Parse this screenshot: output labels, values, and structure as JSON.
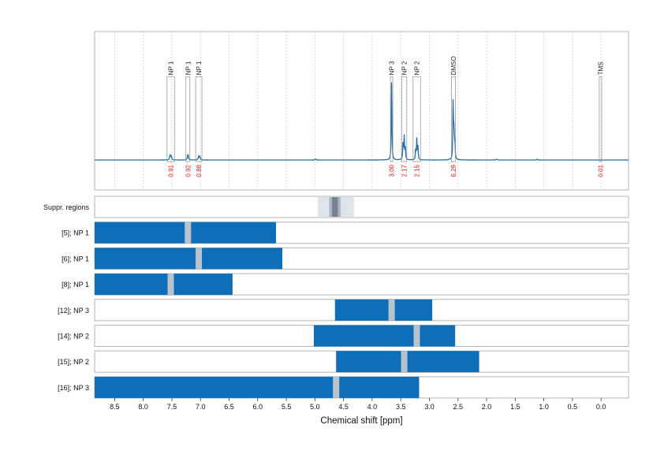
{
  "chart_data": {
    "type": "spectrum",
    "x_label": "Chemical shift [ppm]",
    "x_ticks": [
      "8.5",
      "8.0",
      "7.5",
      "7.0",
      "6.5",
      "6.0",
      "5.5",
      "5.0",
      "4.5",
      "4.0",
      "3.5",
      "3.0",
      "2.5",
      "2.0",
      "1.5",
      "1.0",
      "0.5",
      "0.0"
    ],
    "x_tick_values": [
      8.5,
      8.0,
      7.5,
      7.0,
      6.5,
      6.0,
      5.5,
      5.0,
      4.5,
      4.0,
      3.5,
      3.0,
      2.5,
      2.0,
      1.5,
      1.0,
      0.5,
      0.0
    ],
    "xlim": [
      8.85,
      -0.48
    ],
    "x_reversed": true,
    "grid": true,
    "colors": {
      "spectrum": "#1f6fae",
      "bar": "#0e6eb8",
      "gap": "#b8c4cc",
      "integral": "#e8161b",
      "suppr_outer": "#dde4ec",
      "suppr_mid": "#aab6c2",
      "suppr_inner": "#75828f"
    },
    "peak_boxes": [
      {
        "label": "NP 1",
        "integral": "0.91",
        "ppm": 7.52,
        "width": 0.13,
        "box_top": 0.21
      },
      {
        "label": "NP 1",
        "integral": "0.92",
        "ppm": 7.22,
        "width": 0.07,
        "box_top": 0.21
      },
      {
        "label": "NP 1",
        "integral": "0.88",
        "ppm": 7.03,
        "width": 0.11,
        "box_top": 0.21
      },
      {
        "label": "NP 3",
        "integral": "3.00",
        "ppm": 3.66,
        "width": 0.04,
        "box_top": 0.21
      },
      {
        "label": "NP 2",
        "integral": "2.17",
        "ppm": 3.44,
        "width": 0.09,
        "box_top": 0.21
      },
      {
        "label": "NP 2",
        "integral": "2.15",
        "ppm": 3.22,
        "width": 0.13,
        "box_top": 0.21
      },
      {
        "label": "DMSO",
        "integral": "6.29",
        "ppm": 2.58,
        "width": 0.07,
        "box_top": 0.21
      },
      {
        "label": "TMS",
        "integral": "0.01",
        "ppm": 0.01,
        "width": 0.03,
        "box_top": 0.21
      }
    ],
    "peaks": [
      {
        "ppm": 7.53,
        "height": 0.06,
        "hw": 0.01
      },
      {
        "ppm": 7.51,
        "height": 0.04,
        "hw": 0.008
      },
      {
        "ppm": 7.22,
        "height": 0.07,
        "hw": 0.01
      },
      {
        "ppm": 7.03,
        "height": 0.045,
        "hw": 0.009
      },
      {
        "ppm": 7.01,
        "height": 0.035,
        "hw": 0.008
      },
      {
        "ppm": 3.66,
        "height": 0.98,
        "hw": 0.006
      },
      {
        "ppm": 3.46,
        "height": 0.2,
        "hw": 0.007
      },
      {
        "ppm": 3.44,
        "height": 0.28,
        "hw": 0.006
      },
      {
        "ppm": 3.42,
        "height": 0.14,
        "hw": 0.006
      },
      {
        "ppm": 3.24,
        "height": 0.12,
        "hw": 0.006
      },
      {
        "ppm": 3.22,
        "height": 0.25,
        "hw": 0.006
      },
      {
        "ppm": 3.2,
        "height": 0.16,
        "hw": 0.006
      },
      {
        "ppm": 2.585,
        "height": 0.72,
        "hw": 0.006
      },
      {
        "ppm": 2.57,
        "height": 0.35,
        "hw": 0.006
      },
      {
        "ppm": 2.555,
        "height": 0.2,
        "hw": 0.006
      },
      {
        "ppm": 4.99,
        "height": 0.012,
        "hw": 0.01
      },
      {
        "ppm": 1.82,
        "height": 0.01,
        "hw": 0.01
      },
      {
        "ppm": 1.12,
        "height": 0.01,
        "hw": 0.01
      }
    ],
    "suppr_row": {
      "label": "Suppr. regions",
      "outer": [
        4.95,
        4.32
      ],
      "mid": [
        4.75,
        4.55
      ],
      "inner": [
        4.7,
        4.6
      ]
    },
    "rows": [
      {
        "label": "[5]; NP 1",
        "start": 8.85,
        "end": 5.68,
        "gap_ppm": 7.22
      },
      {
        "label": "[6]; NP 1",
        "start": 8.85,
        "end": 5.57,
        "gap_ppm": 7.03
      },
      {
        "label": "[8]; NP 1",
        "start": 8.85,
        "end": 6.44,
        "gap_ppm": 7.52
      },
      {
        "label": "[12]; NP 3",
        "start": 4.65,
        "end": 2.95,
        "gap_ppm": 3.66
      },
      {
        "label": "[14]; NP 2",
        "start": 5.02,
        "end": 2.55,
        "gap_ppm": 3.22
      },
      {
        "label": "[15]; NP 2",
        "start": 4.63,
        "end": 2.13,
        "gap_ppm": 3.44
      },
      {
        "label": "[16]; NP 3",
        "start": 8.85,
        "end": 3.18,
        "gap_ppm": 4.63
      }
    ]
  }
}
